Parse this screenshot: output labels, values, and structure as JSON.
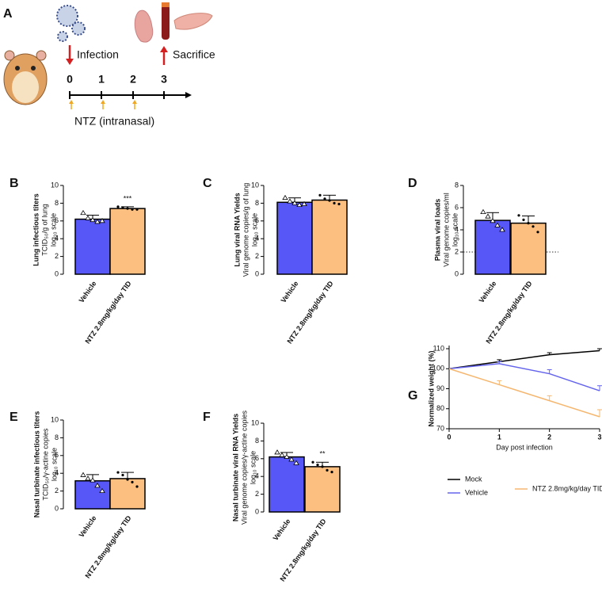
{
  "diagram": {
    "label": "A",
    "infection": "Infection",
    "sacrifice": "Sacrifice",
    "days": [
      0,
      1,
      2,
      3
    ],
    "treatment": "NTZ (intranasal)"
  },
  "chart_data": [
    {
      "type": "bar",
      "label": "B",
      "ylabel": [
        "Lung infectious titers",
        "TCID₅₀/g of lung",
        "log₁₀ scale"
      ],
      "categories": [
        "Vehicle",
        "NTZ 2.8mg/kg/day TID"
      ],
      "colors": [
        "#5757f7",
        "#fdbf80"
      ],
      "values": [
        6.2,
        7.4
      ],
      "errors": [
        0.45,
        0.2
      ],
      "points": [
        [
          6.9,
          6.3,
          6.1,
          5.9,
          6.0
        ],
        [
          7.6,
          7.5,
          7.4,
          7.3,
          7.3
        ]
      ],
      "significance": [
        null,
        "***"
      ],
      "ylim": [
        0,
        10
      ],
      "yticks": [
        0,
        2,
        4,
        6,
        8,
        10
      ]
    },
    {
      "type": "bar",
      "label": "C",
      "ylabel": [
        "Lung viral RNA Yields",
        "Viral genome copies/g of lung",
        "log₁₀ scale"
      ],
      "categories": [
        "Vehicle",
        "NTZ 2.8mg/kg/day TID"
      ],
      "colors": [
        "#5757f7",
        "#fdbf80"
      ],
      "values": [
        8.1,
        8.35
      ],
      "errors": [
        0.5,
        0.55
      ],
      "points": [
        [
          8.6,
          8.2,
          8.0,
          7.8,
          7.9
        ],
        [
          8.9,
          8.5,
          8.3,
          8.0,
          7.9
        ]
      ],
      "ylim": [
        0,
        10
      ],
      "yticks": [
        0,
        2,
        4,
        6,
        8,
        10
      ]
    },
    {
      "type": "bar",
      "label": "D",
      "ylabel": [
        "Plasma viral loads",
        "Viral genome copies/ml",
        "log₁₀ scale"
      ],
      "categories": [
        "Vehicle",
        "NTZ 2.8mg/kg/day TID"
      ],
      "colors": [
        "#5757f7",
        "#fdbf80"
      ],
      "values": [
        4.85,
        4.6
      ],
      "errors": [
        0.7,
        0.65
      ],
      "points": [
        [
          5.6,
          5.2,
          4.8,
          4.4,
          4.0
        ],
        [
          5.3,
          4.9,
          4.6,
          4.3,
          3.8
        ]
      ],
      "reference_line": 2,
      "ylim": [
        0,
        8
      ],
      "yticks": [
        0,
        2,
        4,
        6,
        8
      ]
    },
    {
      "type": "bar",
      "label": "E",
      "ylabel": [
        "Nasal turbinate infectious titers",
        "TCID₅₀/γ-actine copies",
        "log₁₀ scale"
      ],
      "categories": [
        "Vehicle",
        "NTZ 2.8mg/kg/day TID"
      ],
      "colors": [
        "#5757f7",
        "#fdbf80"
      ],
      "values": [
        3.15,
        3.4
      ],
      "errors": [
        0.7,
        0.7
      ],
      "points": [
        [
          3.8,
          3.4,
          3.2,
          2.6,
          2.0
        ],
        [
          4.1,
          3.8,
          3.3,
          3.0,
          2.5
        ]
      ],
      "ylim": [
        0,
        10
      ],
      "yticks": [
        0,
        2,
        4,
        6,
        8,
        10
      ]
    },
    {
      "type": "bar",
      "label": "F",
      "ylabel": [
        "Nasal turbinate viral RNA Yields",
        "Viral genome copies/γ-actine copies",
        "log₁₀ scale"
      ],
      "categories": [
        "Vehicle",
        "NTZ 2.8mg/kg/day TID"
      ],
      "colors": [
        "#5757f7",
        "#fdbf80"
      ],
      "values": [
        6.2,
        5.1
      ],
      "errors": [
        0.5,
        0.5
      ],
      "points": [
        [
          6.7,
          6.4,
          6.2,
          5.9,
          5.5
        ],
        [
          5.6,
          5.3,
          5.1,
          4.7,
          4.5
        ]
      ],
      "significance": [
        null,
        "**"
      ],
      "ylim": [
        0,
        10
      ],
      "yticks": [
        0,
        2,
        4,
        6,
        8,
        10
      ]
    },
    {
      "type": "line",
      "label": "G",
      "ylabel": "Normalized weight (%)",
      "xlabel": "Day post infection",
      "x": [
        0,
        1,
        2,
        3
      ],
      "series": [
        {
          "name": "Mock",
          "color": "#000000",
          "values": [
            100,
            103.5,
            107,
            109
          ],
          "errors": [
            0,
            1,
            1,
            1
          ]
        },
        {
          "name": "Vehicle",
          "color": "#6464ee",
          "values": [
            100,
            102.5,
            97.5,
            89
          ],
          "errors": [
            0,
            1,
            2,
            2.5
          ]
        },
        {
          "name": "NTZ 2.8mg/kg/day TID",
          "color": "#f5b770",
          "values": [
            100,
            92,
            84,
            76
          ],
          "errors": [
            0,
            2,
            2.5,
            3.5
          ]
        }
      ],
      "xlim": [
        0,
        3
      ],
      "xticks": [
        0,
        1,
        2,
        3
      ],
      "ylim": [
        70,
        110
      ],
      "yticks": [
        70,
        80,
        90,
        100,
        110
      ]
    }
  ]
}
